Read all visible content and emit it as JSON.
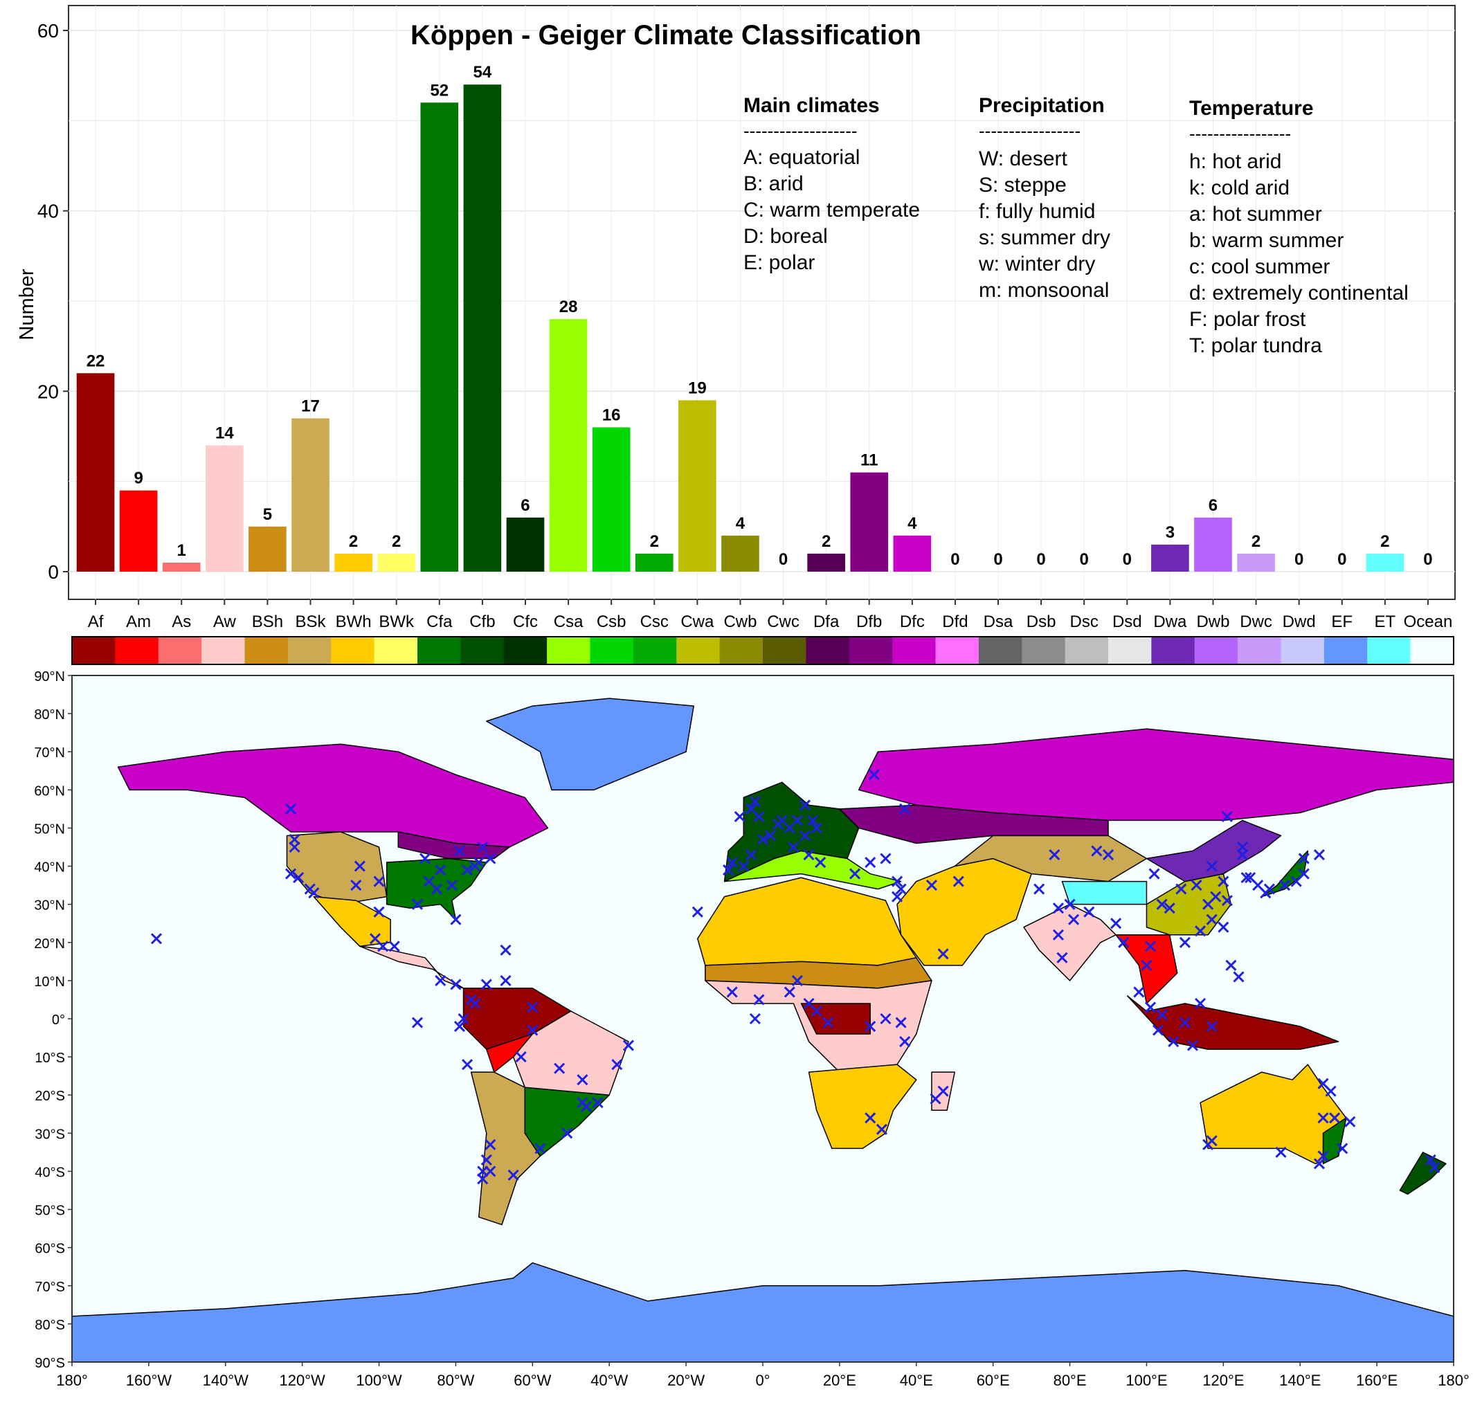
{
  "chart_data": [
    {
      "type": "bar",
      "title": "Köppen - Geiger Climate Classification",
      "xlabel": "",
      "ylabel": "Number",
      "ylim": [
        0,
        62
      ],
      "yticks": [
        "0",
        "20",
        "40",
        "60"
      ],
      "grid": true,
      "legend_position": "top-right",
      "categories": [
        "Af",
        "Am",
        "As",
        "Aw",
        "BSh",
        "BSk",
        "BWh",
        "BWk",
        "Cfa",
        "Cfb",
        "Cfc",
        "Csa",
        "Csb",
        "Csc",
        "Cwa",
        "Cwb",
        "Cwc",
        "Dfa",
        "Dfb",
        "Dfc",
        "Dfd",
        "Dsa",
        "Dsb",
        "Dsc",
        "Dsd",
        "Dwa",
        "Dwb",
        "Dwc",
        "Dwd",
        "EF",
        "ET",
        "Ocean"
      ],
      "values": [
        22,
        9,
        1,
        14,
        5,
        17,
        2,
        2,
        52,
        54,
        6,
        28,
        16,
        2,
        19,
        4,
        0,
        2,
        11,
        4,
        0,
        0,
        0,
        0,
        0,
        3,
        6,
        2,
        0,
        0,
        2,
        0
      ],
      "value_labels": [
        "22",
        "9",
        "1",
        "14",
        "5",
        "17",
        "2",
        "2",
        "52",
        "54",
        "6",
        "28",
        "16",
        "2",
        "19",
        "4",
        "0",
        "2",
        "11",
        "4",
        "0",
        "0",
        "0",
        "0",
        "0",
        "3",
        "6",
        "2",
        "0",
        "0",
        "2",
        "0"
      ],
      "colors": [
        "#960000",
        "#FF0000",
        "#FF6E6E",
        "#FFCCCC",
        "#CC8D14",
        "#CCAA54",
        "#FFCC00",
        "#FFFF64",
        "#007800",
        "#005000",
        "#003200",
        "#96FF00",
        "#00D700",
        "#00AA00",
        "#BEBE00",
        "#8C8C00",
        "#5A5A00",
        "#550055",
        "#820082",
        "#C800C8",
        "#FF6EFF",
        "#646464",
        "#8C8C8C",
        "#BEBEBE",
        "#E6E6E6",
        "#6E28B4",
        "#B464FA",
        "#C89BFA",
        "#C8C8FF",
        "#6496FF",
        "#64FFFF",
        "#F5FFFF"
      ]
    },
    {
      "type": "scatter",
      "title": "",
      "x_axis": "longitude",
      "y_axis": "latitude",
      "xlim": [
        -180,
        180
      ],
      "ylim": [
        -90,
        90
      ],
      "xticks": [
        "180°",
        "160°W",
        "140°W",
        "120°W",
        "100°W",
        "80°W",
        "60°W",
        "40°W",
        "20°W",
        "0°",
        "20°E",
        "40°E",
        "60°E",
        "80°E",
        "100°E",
        "120°E",
        "140°E",
        "160°E",
        "180°"
      ],
      "yticks": [
        "90°N",
        "80°N",
        "70°N",
        "60°N",
        "50°N",
        "40°N",
        "30°N",
        "20°N",
        "10°N",
        "0°",
        "10°S",
        "20°S",
        "30°S",
        "40°S",
        "50°S",
        "60°S",
        "70°S",
        "80°S",
        "90°S"
      ],
      "marker": "x",
      "marker_color": "#1F1FE6",
      "ocean_color": "#F5FFFF",
      "points": [
        [
          -158,
          21
        ],
        [
          -122,
          47
        ],
        [
          -122,
          45
        ],
        [
          -123,
          38
        ],
        [
          -121,
          37
        ],
        [
          -118,
          34
        ],
        [
          -117,
          33
        ],
        [
          -106,
          35
        ],
        [
          -105,
          40
        ],
        [
          -100,
          36
        ],
        [
          -100,
          28
        ],
        [
          -99,
          19
        ],
        [
          -101,
          21
        ],
        [
          -96,
          19
        ],
        [
          -90,
          30
        ],
        [
          -88,
          42
        ],
        [
          -87,
          36
        ],
        [
          -85,
          34
        ],
        [
          -84,
          39
        ],
        [
          -81,
          35
        ],
        [
          -80,
          26
        ],
        [
          -79,
          44
        ],
        [
          -77,
          39
        ],
        [
          -75,
          40
        ],
        [
          -74,
          41
        ],
        [
          -71,
          42
        ],
        [
          -73,
          45
        ],
        [
          -123,
          55
        ],
        [
          -84,
          10
        ],
        [
          -80,
          9
        ],
        [
          -76,
          5
        ],
        [
          -75,
          4
        ],
        [
          -79,
          -2
        ],
        [
          -78,
          0
        ],
        [
          -77,
          -12
        ],
        [
          -72,
          9
        ],
        [
          -67,
          10
        ],
        [
          -67,
          18
        ],
        [
          -60,
          3
        ],
        [
          -60,
          -3
        ],
        [
          -53,
          -13
        ],
        [
          -47,
          -22
        ],
        [
          -43,
          -22
        ],
        [
          -47,
          -16
        ],
        [
          -38,
          -12
        ],
        [
          -35,
          -7
        ],
        [
          -46,
          -23
        ],
        [
          -51,
          -30
        ],
        [
          -58,
          -34
        ],
        [
          -71,
          -33
        ],
        [
          -72,
          -37
        ],
        [
          -73,
          -40
        ],
        [
          -73,
          -42
        ],
        [
          -71,
          -40
        ],
        [
          -65,
          -41
        ],
        [
          -90,
          -1
        ],
        [
          -63,
          -10
        ],
        [
          -17,
          28
        ],
        [
          -9,
          39
        ],
        [
          -5,
          40
        ],
        [
          -8,
          41
        ],
        [
          -3,
          43
        ],
        [
          0,
          47
        ],
        [
          2,
          48
        ],
        [
          4,
          51
        ],
        [
          5,
          52
        ],
        [
          7,
          50
        ],
        [
          9,
          52
        ],
        [
          11,
          48
        ],
        [
          14,
          50
        ],
        [
          13,
          52
        ],
        [
          11,
          56
        ],
        [
          -3,
          55
        ],
        [
          -6,
          53
        ],
        [
          -1,
          53
        ],
        [
          -2,
          57
        ],
        [
          8,
          45
        ],
        [
          12,
          43
        ],
        [
          15,
          41
        ],
        [
          24,
          38
        ],
        [
          28,
          41
        ],
        [
          29,
          64
        ],
        [
          37,
          55
        ],
        [
          32,
          42
        ],
        [
          35,
          32
        ],
        [
          35,
          36
        ],
        [
          36,
          34
        ],
        [
          44,
          35
        ],
        [
          51,
          36
        ],
        [
          47,
          17
        ],
        [
          -8,
          7
        ],
        [
          -1,
          5
        ],
        [
          -2,
          0
        ],
        [
          7,
          7
        ],
        [
          9,
          10
        ],
        [
          12,
          4
        ],
        [
          14,
          2
        ],
        [
          17,
          -1
        ],
        [
          36,
          -1
        ],
        [
          37,
          -6
        ],
        [
          32,
          0
        ],
        [
          28,
          -2
        ],
        [
          28,
          -26
        ],
        [
          31,
          -29
        ],
        [
          47,
          -19
        ],
        [
          45,
          -21
        ],
        [
          72,
          34
        ],
        [
          77,
          29
        ],
        [
          80,
          30
        ],
        [
          85,
          28
        ],
        [
          77,
          22
        ],
        [
          78,
          16
        ],
        [
          81,
          26
        ],
        [
          92,
          25
        ],
        [
          94,
          20
        ],
        [
          100,
          14
        ],
        [
          101,
          19
        ],
        [
          98,
          7
        ],
        [
          101,
          3
        ],
        [
          104,
          1
        ],
        [
          103,
          -3
        ],
        [
          112,
          -7
        ],
        [
          117,
          -2
        ],
        [
          110,
          -1
        ],
        [
          107,
          -6
        ],
        [
          114,
          4
        ],
        [
          122,
          14
        ],
        [
          124,
          11
        ],
        [
          120,
          24
        ],
        [
          117,
          26
        ],
        [
          114,
          23
        ],
        [
          110,
          20
        ],
        [
          116,
          30
        ],
        [
          118,
          32
        ],
        [
          121,
          31
        ],
        [
          120,
          36
        ],
        [
          117,
          40
        ],
        [
          104,
          30
        ],
        [
          106,
          29
        ],
        [
          102,
          38
        ],
        [
          109,
          34
        ],
        [
          113,
          35
        ],
        [
          125,
          43
        ],
        [
          126,
          37
        ],
        [
          127,
          37
        ],
        [
          129,
          35
        ],
        [
          136,
          35
        ],
        [
          139,
          36
        ],
        [
          141,
          38
        ],
        [
          141,
          42
        ],
        [
          145,
          43
        ],
        [
          132,
          34
        ],
        [
          131,
          33
        ],
        [
          125,
          45
        ],
        [
          121,
          53
        ],
        [
          90,
          43
        ],
        [
          87,
          44
        ],
        [
          76,
          43
        ],
        [
          117,
          -32
        ],
        [
          116,
          -33
        ],
        [
          135,
          -35
        ],
        [
          145,
          -38
        ],
        [
          146,
          -36
        ],
        [
          151,
          -34
        ],
        [
          153,
          -27
        ],
        [
          146,
          -17
        ],
        [
          148,
          -19
        ],
        [
          174,
          -37
        ],
        [
          175,
          -39
        ],
        [
          149,
          -26
        ],
        [
          146,
          -26
        ]
      ]
    }
  ],
  "legend": {
    "main_climates": {
      "header": "Main climates",
      "rule": "-------------------",
      "items": [
        "A: equatorial",
        "B: arid",
        "C: warm temperate",
        "D: boreal",
        "E: polar"
      ]
    },
    "precipitation": {
      "header": "Precipitation",
      "rule": "-----------------",
      "items": [
        "W: desert",
        "S: steppe",
        "f: fully humid",
        "s: summer dry",
        "w: winter dry",
        "m: monsoonal"
      ]
    },
    "temperature": {
      "header": "Temperature",
      "rule": "-----------------",
      "items": [
        "h: hot arid",
        "k: cold arid",
        "a: hot summer",
        "b: warm summer",
        "c: cool summer",
        "d: extremely continental",
        "F: polar frost",
        "T: polar tundra"
      ]
    }
  }
}
